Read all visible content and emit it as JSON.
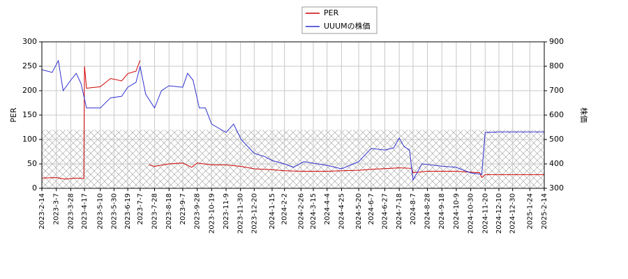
{
  "chart_data": {
    "type": "line",
    "y_label": "PER",
    "y2_label": "株価",
    "xlim": [
      "2023-2-14",
      "2025-2-14"
    ],
    "xticks": [
      "2023-2-14",
      "2023-3-7",
      "2023-3-28",
      "2023-4-17",
      "2023-5-10",
      "2023-5-30",
      "2023-6-19",
      "2023-7-7",
      "2023-7-28",
      "2023-8-18",
      "2023-9-7",
      "2023-9-28",
      "2023-10-19",
      "2023-11-9",
      "2023-11-30",
      "2023-12-20",
      "2024-1-15",
      "2024-2-2",
      "2024-2-26",
      "2024-3-15",
      "2024-4-4",
      "2024-4-25",
      "2024-5-20",
      "2024-6-7",
      "2024-6-27",
      "2024-7-18",
      "2024-8-7",
      "2024-8-28",
      "2024-9-18",
      "2024-10-9",
      "2024-10-30",
      "2024-11-20",
      "2024-12-10",
      "2024-12-30",
      "2025-1-24",
      "2025-2-14"
    ],
    "ylim": [
      0,
      300
    ],
    "yticks": [
      0,
      50,
      100,
      150,
      200,
      250,
      300
    ],
    "y2lim": [
      300,
      900
    ],
    "y2ticks": [
      300,
      400,
      500,
      600,
      700,
      800,
      900
    ],
    "grid": true,
    "shaded_range": [
      0,
      120
    ],
    "legend": "top",
    "series": [
      {
        "name": "PER",
        "color": "#d00000",
        "axis": "y",
        "x": [
          "2023-2-14",
          "2023-3-7",
          "2023-3-20",
          "2023-4-5",
          "2023-4-16",
          "2023-4-17",
          "2023-4-20",
          "2023-5-10",
          "2023-5-25",
          "2023-6-10",
          "2023-6-19",
          "2023-7-1",
          "2023-7-7",
          "2023-7-15",
          "2023-7-20",
          "2023-7-28",
          "2023-8-18",
          "2023-9-7",
          "2023-9-20",
          "2023-9-28",
          "2023-10-19",
          "2023-11-9",
          "2023-11-30",
          "2023-12-20",
          "2024-1-15",
          "2024-2-2",
          "2024-2-26",
          "2024-4-4",
          "2024-5-20",
          "2024-6-7",
          "2024-7-18",
          "2024-8-5",
          "2024-8-7",
          "2024-8-28",
          "2024-9-18",
          "2024-10-9",
          "2024-10-30",
          "2024-11-12",
          "2024-11-15",
          "2024-11-20",
          "2025-2-14"
        ],
        "values": [
          21,
          22,
          19,
          21,
          20,
          250,
          205,
          208,
          225,
          220,
          235,
          240,
          262,
          null,
          48,
          45,
          50,
          52,
          43,
          52,
          48,
          48,
          45,
          40,
          38,
          36,
          35,
          35,
          37,
          39,
          42,
          41,
          32,
          35,
          35,
          35,
          33,
          32,
          22,
          28,
          28
        ]
      },
      {
        "name": "UUUMの株価",
        "color": "#3030d0",
        "axis": "y2",
        "x": [
          "2023-2-14",
          "2023-3-1",
          "2023-3-10",
          "2023-3-17",
          "2023-3-28",
          "2023-4-5",
          "2023-4-12",
          "2023-4-20",
          "2023-5-10",
          "2023-5-25",
          "2023-6-10",
          "2023-6-19",
          "2023-7-1",
          "2023-7-7",
          "2023-7-15",
          "2023-7-28",
          "2023-8-7",
          "2023-8-18",
          "2023-9-7",
          "2023-9-14",
          "2023-9-22",
          "2023-10-1",
          "2023-10-10",
          "2023-10-19",
          "2023-11-9",
          "2023-11-20",
          "2023-12-1",
          "2023-12-20",
          "2024-1-5",
          "2024-1-15",
          "2024-2-2",
          "2024-2-15",
          "2024-3-1",
          "2024-4-4",
          "2024-4-25",
          "2024-5-20",
          "2024-6-7",
          "2024-6-27",
          "2024-7-10",
          "2024-7-18",
          "2024-7-25",
          "2024-8-2",
          "2024-8-7",
          "2024-8-20",
          "2024-9-18",
          "2024-10-9",
          "2024-10-30",
          "2024-11-15",
          "2024-11-20",
          "2024-12-10",
          "2025-2-14"
        ],
        "values": [
          786,
          775,
          823,
          700,
          743,
          771,
          729,
          629,
          629,
          671,
          677,
          714,
          734,
          800,
          686,
          629,
          700,
          720,
          714,
          771,
          743,
          629,
          629,
          563,
          529,
          563,
          500,
          443,
          429,
          414,
          400,
          386,
          409,
          394,
          380,
          409,
          463,
          457,
          466,
          506,
          471,
          457,
          334,
          400,
          391,
          386,
          363,
          357,
          529,
          531,
          531
        ]
      }
    ]
  }
}
